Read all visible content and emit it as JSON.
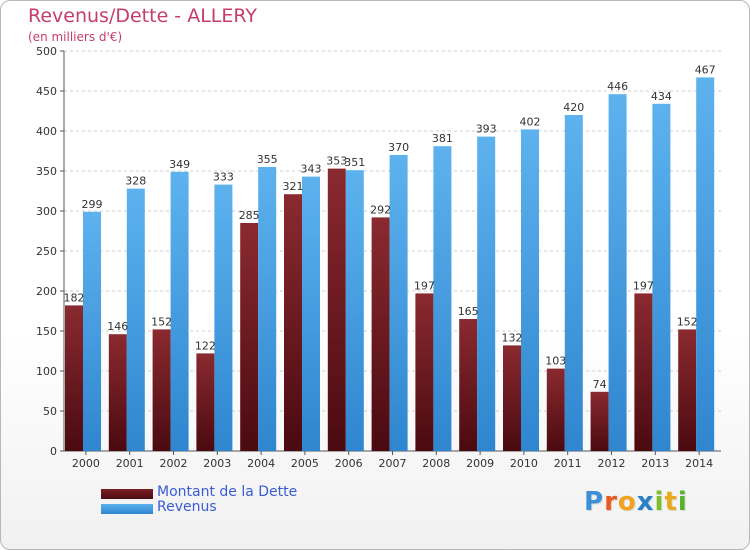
{
  "chart_data": {
    "type": "bar",
    "title": "Revenus/Dette - ALLERY",
    "subtitle": "(en milliers d'€)",
    "categories": [
      "2000",
      "2001",
      "2002",
      "2003",
      "2004",
      "2005",
      "2006",
      "2007",
      "2008",
      "2009",
      "2010",
      "2011",
      "2012",
      "2013",
      "2014"
    ],
    "series": [
      {
        "name": "Montant de la Dette",
        "color": "#7a1e25",
        "values": [
          182,
          146,
          152,
          122,
          285,
          321,
          353,
          292,
          197,
          165,
          132,
          103,
          74,
          197,
          152
        ]
      },
      {
        "name": "Revenus",
        "color": "#4aa3e6",
        "values": [
          299,
          328,
          349,
          333,
          355,
          343,
          351,
          370,
          381,
          393,
          402,
          420,
          446,
          434,
          467
        ]
      }
    ],
    "ylim": [
      0,
      500
    ],
    "yticks": [
      0,
      50,
      100,
      150,
      200,
      250,
      300,
      350,
      400,
      450,
      500
    ],
    "grid": true,
    "legend_position": "bottom-left"
  },
  "logo": {
    "letters": [
      {
        "ch": "P",
        "color": "#3d8fd6"
      },
      {
        "ch": "r",
        "color": "#e85a1e"
      },
      {
        "ch": "o",
        "color": "#f2a21c"
      },
      {
        "ch": "x",
        "color": "#2a7fc9"
      },
      {
        "ch": "i",
        "color": "#7cbf2b"
      },
      {
        "ch": "t",
        "color": "#e8a91a"
      },
      {
        "ch": "i",
        "color": "#58b02b"
      }
    ]
  }
}
